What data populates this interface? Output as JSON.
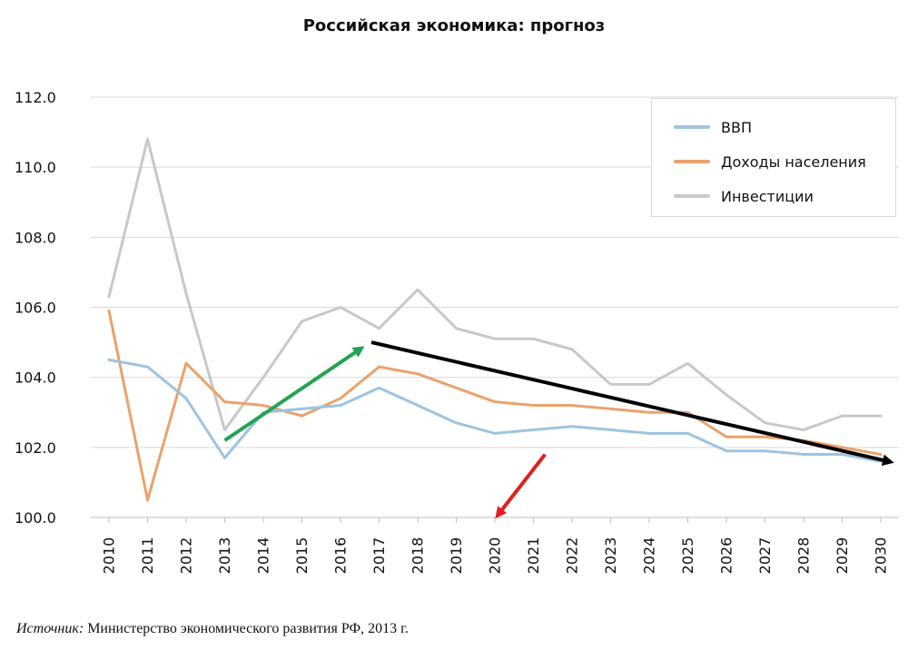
{
  "chart_data": {
    "type": "line",
    "title": "Российская экономика: прогноз",
    "xlabel": "",
    "ylabel": "",
    "x": [
      2010,
      2011,
      2012,
      2013,
      2014,
      2015,
      2016,
      2017,
      2018,
      2019,
      2020,
      2021,
      2022,
      2023,
      2024,
      2025,
      2026,
      2027,
      2028,
      2029,
      2030
    ],
    "x_tick_labels": [
      "2010",
      "2011",
      "2012",
      "2013",
      "2014",
      "2015",
      "2016",
      "2017",
      "2018",
      "2019",
      "2020",
      "2021",
      "2022",
      "2023",
      "2024",
      "2025",
      "2026",
      "2027",
      "2028",
      "2029",
      "2030"
    ],
    "ylim": [
      100.0,
      112.0
    ],
    "y_ticks": [
      100.0,
      102.0,
      104.0,
      106.0,
      108.0,
      110.0,
      112.0
    ],
    "y_tick_labels": [
      "100.0",
      "102.0",
      "104.0",
      "106.0",
      "108.0",
      "110.0",
      "112.0"
    ],
    "grid": true,
    "legend_position": "top-right",
    "series": [
      {
        "name": "ВВП",
        "color": "#9dc3e0",
        "values": [
          104.5,
          104.3,
          103.4,
          101.7,
          103.0,
          103.1,
          103.2,
          103.7,
          103.2,
          102.7,
          102.4,
          102.5,
          102.6,
          102.5,
          102.4,
          102.4,
          101.9,
          101.9,
          101.8,
          101.8,
          101.6
        ]
      },
      {
        "name": "Доходы населения",
        "color": "#e9a26c",
        "values": [
          105.9,
          100.5,
          104.4,
          103.3,
          103.2,
          102.9,
          103.4,
          104.3,
          104.1,
          103.7,
          103.3,
          103.2,
          103.2,
          103.1,
          103.0,
          103.0,
          102.3,
          102.3,
          102.2,
          102.0,
          101.8
        ]
      },
      {
        "name": "Инвестиции",
        "color": "#c8c8c8",
        "values": [
          106.3,
          110.8,
          106.4,
          102.5,
          104.0,
          105.6,
          106.0,
          105.4,
          106.5,
          105.4,
          105.1,
          105.1,
          104.8,
          103.8,
          103.8,
          104.4,
          103.5,
          102.7,
          102.5,
          102.9,
          102.9
        ]
      }
    ],
    "annotations": [
      {
        "type": "arrow",
        "color": "#22a455",
        "from": [
          2013,
          102.2
        ],
        "to": [
          2016.5,
          104.8
        ]
      },
      {
        "type": "arrow",
        "color": "#000000",
        "from": [
          2016.8,
          105.0
        ],
        "to": [
          2030.2,
          101.6
        ]
      },
      {
        "type": "arrow",
        "color": "#e0201e",
        "from": [
          2021.3,
          101.8
        ],
        "to": [
          2020.1,
          100.1
        ]
      }
    ]
  },
  "source": {
    "label": "Источник:",
    "text": "Министерство экономического развития РФ, 2013 г."
  }
}
